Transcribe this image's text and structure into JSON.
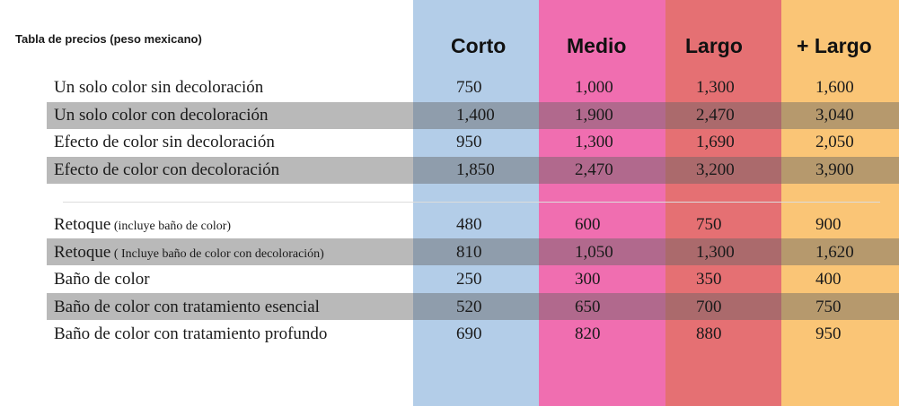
{
  "title": "Tabla de precios (peso mexicano)",
  "columns": [
    "Corto",
    "Medio",
    "Largo",
    "+ Largo"
  ],
  "colors": {
    "corto": "#b3cde8",
    "medio": "#f06eb0",
    "largo": "#e57073",
    "mas_largo": "#fac576",
    "band": "#bbbbbb"
  },
  "group1": [
    {
      "label": "Un solo color sin decoloración",
      "values": [
        "750",
        "1,000",
        "1,300",
        "1,600"
      ]
    },
    {
      "label": "Un solo color con decoloración",
      "values": [
        "1,400",
        "1,900",
        "2,470",
        "3,040"
      ]
    },
    {
      "label": "Efecto de color sin decoloración",
      "values": [
        "950",
        "1,300",
        "1,690",
        "2,050"
      ]
    },
    {
      "label": "Efecto de color con decoloración",
      "values": [
        "1,850",
        "2,470",
        "3,200",
        "3,900"
      ]
    }
  ],
  "group2": [
    {
      "label": "Retoque",
      "note": " (incluye baño de color)",
      "values": [
        "480",
        "600",
        "750",
        "900"
      ]
    },
    {
      "label": "Retoque",
      "note": " ( Incluye baño de color con decoloración)",
      "values": [
        "810",
        "1,050",
        "1,300",
        "1,620"
      ]
    },
    {
      "label": "Baño de color",
      "values": [
        "250",
        "300",
        "350",
        "400"
      ]
    },
    {
      "label": "Baño de color con tratamiento esencial",
      "values": [
        "520",
        "650",
        "700",
        "750"
      ]
    },
    {
      "label": "Baño de color con tratamiento profundo",
      "values": [
        "690",
        "820",
        "880",
        "950"
      ]
    }
  ]
}
